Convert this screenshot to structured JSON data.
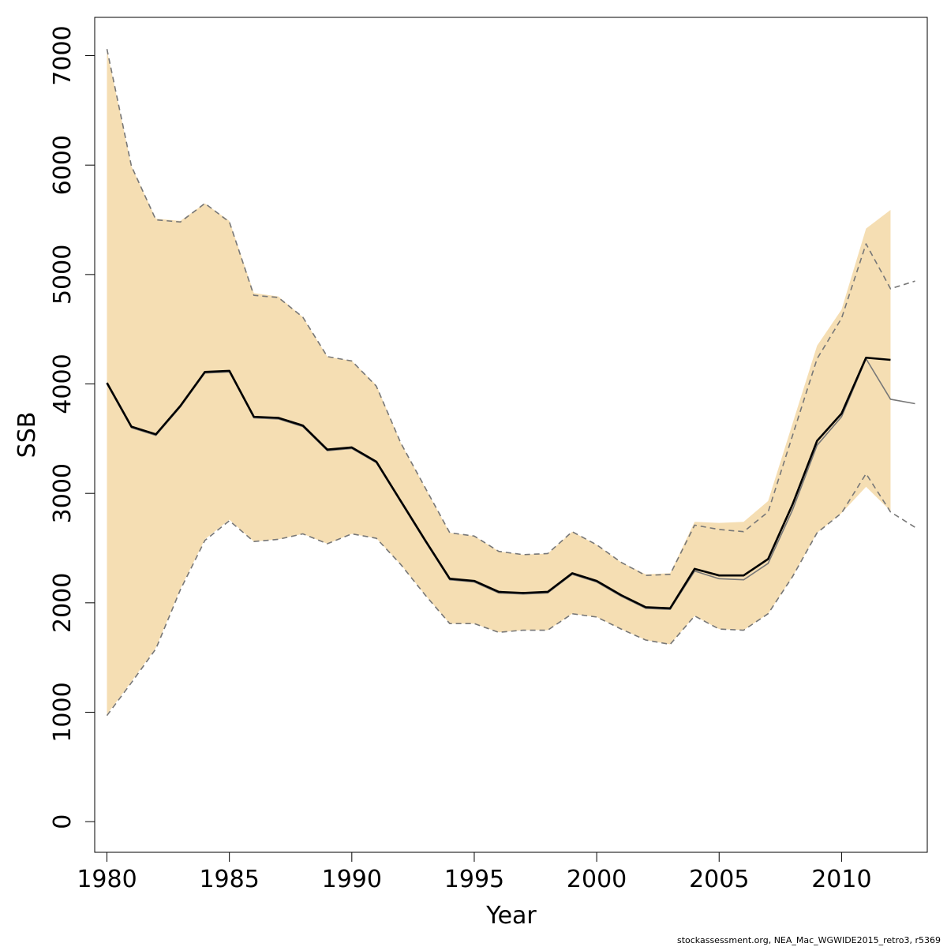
{
  "chart_data": {
    "type": "line",
    "title": "",
    "xlabel": "Year",
    "ylabel": "SSB",
    "xlim": [
      1979.5,
      2013.5
    ],
    "ylim": [
      -280,
      7350
    ],
    "x_ticks": [
      1980,
      1985,
      1990,
      1995,
      2000,
      2005,
      2010
    ],
    "y_ticks": [
      0,
      1000,
      2000,
      3000,
      4000,
      5000,
      6000,
      7000
    ],
    "grid": false,
    "legend": "none",
    "band": {
      "name": "",
      "color": "#F5DEB3",
      "x": [
        1980,
        1981,
        1982,
        1983,
        1984,
        1985,
        1986,
        1987,
        1988,
        1989,
        1990,
        1991,
        1992,
        1993,
        1994,
        1995,
        1996,
        1997,
        1998,
        1999,
        2000,
        2001,
        2002,
        2003,
        2004,
        2005,
        2006,
        2007,
        2008,
        2009,
        2010,
        2011,
        2012
      ],
      "upper": [
        7050,
        5990,
        5510,
        5490,
        5650,
        5490,
        4830,
        4800,
        4610,
        4250,
        4210,
        3990,
        3460,
        3050,
        2640,
        2610,
        2470,
        2440,
        2450,
        2650,
        2530,
        2370,
        2260,
        2270,
        2740,
        2730,
        2740,
        2930,
        3640,
        4350,
        4680,
        5420,
        5590
      ],
      "lower": [
        980,
        1280,
        1590,
        2130,
        2580,
        2760,
        2560,
        2580,
        2630,
        2540,
        2630,
        2590,
        2350,
        2070,
        1810,
        1810,
        1730,
        1750,
        1750,
        1900,
        1870,
        1760,
        1660,
        1620,
        1880,
        1760,
        1750,
        1900,
        2240,
        2640,
        2820,
        3060,
        2840
      ]
    },
    "series": [
      {
        "name": "",
        "color": "#000000",
        "style": "solid-thick",
        "x": [
          1980,
          1981,
          1982,
          1983,
          1984,
          1985,
          1986,
          1987,
          1988,
          1989,
          1990,
          1991,
          1992,
          1993,
          1994,
          1995,
          1996,
          1997,
          1998,
          1999,
          2000,
          2001,
          2002,
          2003,
          2004,
          2005,
          2006,
          2007,
          2008,
          2009,
          2010,
          2011,
          2012
        ],
        "values": [
          4010,
          3610,
          3540,
          3800,
          4110,
          4120,
          3700,
          3690,
          3620,
          3400,
          3420,
          3290,
          2930,
          2570,
          2220,
          2200,
          2100,
          2090,
          2100,
          2270,
          2200,
          2070,
          1960,
          1950,
          2310,
          2250,
          2250,
          2400,
          2900,
          3480,
          3730,
          4240,
          4220
        ]
      },
      {
        "name": "",
        "color": "#777777",
        "style": "solid",
        "x": [
          1980,
          1981,
          1982,
          1983,
          1984,
          1985,
          1986,
          1987,
          1988,
          1989,
          1990,
          1991,
          1992,
          1993,
          1994,
          1995,
          1996,
          1997,
          1998,
          1999,
          2000,
          2001,
          2002,
          2003,
          2004,
          2005,
          2006,
          2007,
          2008,
          2009,
          2010,
          2011,
          2012,
          2013
        ],
        "values": [
          4000,
          3600,
          3530,
          3790,
          4100,
          4110,
          3690,
          3680,
          3610,
          3390,
          3410,
          3280,
          2920,
          2560,
          2210,
          2190,
          2090,
          2080,
          2090,
          2260,
          2190,
          2060,
          1950,
          1940,
          2290,
          2220,
          2210,
          2360,
          2850,
          3440,
          3700,
          4230,
          3860,
          3820
        ]
      },
      {
        "name": "",
        "color": "#777777",
        "style": "dashed",
        "x": [
          1980,
          1981,
          1982,
          1983,
          1984,
          1985,
          1986,
          1987,
          1988,
          1989,
          1990,
          1991,
          1992,
          1993,
          1994,
          1995,
          1996,
          1997,
          1998,
          1999,
          2000,
          2001,
          2002,
          2003,
          2004,
          2005,
          2006,
          2007,
          2008,
          2009,
          2010,
          2011,
          2012,
          2013
        ],
        "values": [
          7060,
          5990,
          5500,
          5480,
          5650,
          5480,
          4810,
          4790,
          4610,
          4250,
          4210,
          3980,
          3460,
          3050,
          2640,
          2610,
          2470,
          2440,
          2450,
          2650,
          2530,
          2370,
          2250,
          2260,
          2710,
          2670,
          2650,
          2830,
          3530,
          4230,
          4600,
          5280,
          4870,
          4940
        ]
      },
      {
        "name": "",
        "color": "#777777",
        "style": "dashed",
        "x": [
          1980,
          1981,
          1982,
          1983,
          1984,
          1985,
          1986,
          1987,
          1988,
          1989,
          1990,
          1991,
          1992,
          1993,
          1994,
          1995,
          1996,
          1997,
          1998,
          1999,
          2000,
          2001,
          2002,
          2003,
          2004,
          2005,
          2006,
          2007,
          2008,
          2009,
          2010,
          2011,
          2012,
          2013
        ],
        "values": [
          970,
          1270,
          1580,
          2120,
          2570,
          2750,
          2560,
          2580,
          2630,
          2540,
          2630,
          2590,
          2350,
          2070,
          1810,
          1810,
          1730,
          1750,
          1750,
          1900,
          1870,
          1760,
          1660,
          1620,
          1880,
          1760,
          1750,
          1900,
          2240,
          2640,
          2820,
          3180,
          2830,
          2690
        ]
      }
    ]
  },
  "footer": {
    "text": "stockassessment.org, NEA_Mac_WGWIDE2015_retro3, r5369"
  }
}
